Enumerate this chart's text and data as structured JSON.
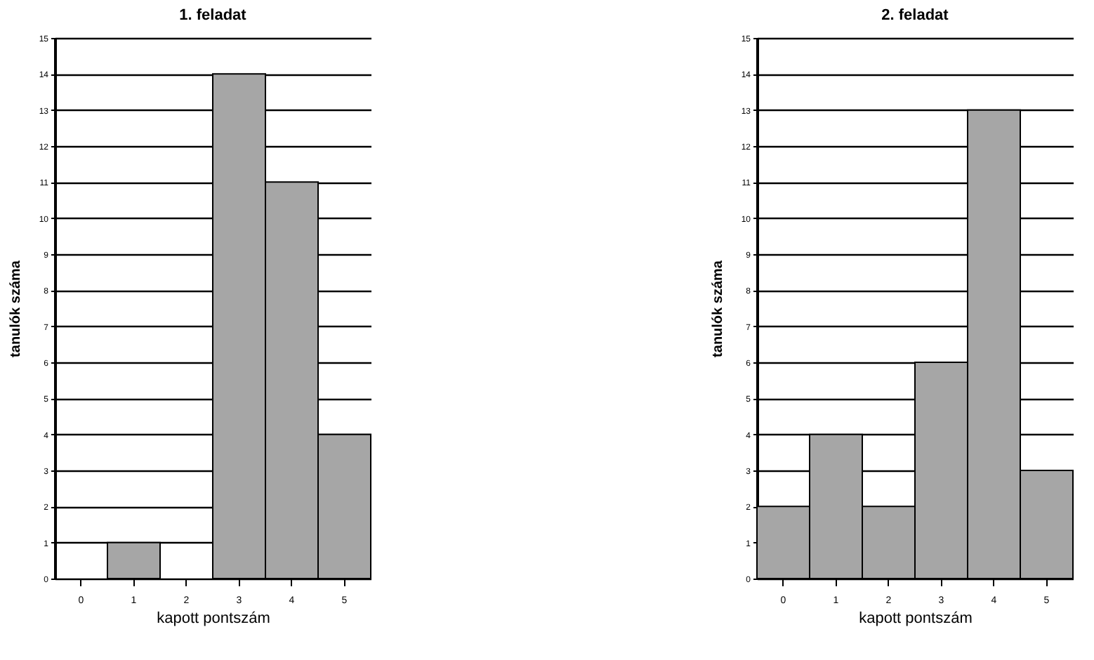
{
  "chart_data": [
    {
      "type": "bar",
      "title": "1. feladat",
      "xlabel": "kapott pontszám",
      "ylabel": "tanulók száma",
      "categories": [
        "0",
        "1",
        "2",
        "3",
        "4",
        "5"
      ],
      "values": [
        0,
        1,
        0,
        14,
        11,
        4
      ],
      "color": "#a6a6a6",
      "ylim": [
        0,
        15
      ],
      "yticks": [
        0,
        1,
        2,
        3,
        4,
        5,
        6,
        7,
        8,
        9,
        10,
        11,
        12,
        13,
        14,
        15
      ],
      "grid": "y"
    },
    {
      "type": "bar",
      "title": "2. feladat",
      "xlabel": "kapott pontszám",
      "ylabel": "tanulók száma",
      "categories": [
        "0",
        "1",
        "2",
        "3",
        "4",
        "5"
      ],
      "values": [
        2,
        4,
        2,
        6,
        13,
        3
      ],
      "color": "#a6a6a6",
      "ylim": [
        0,
        15
      ],
      "yticks": [
        0,
        1,
        2,
        3,
        4,
        5,
        6,
        7,
        8,
        9,
        10,
        11,
        12,
        13,
        14,
        15
      ],
      "grid": "y"
    }
  ]
}
